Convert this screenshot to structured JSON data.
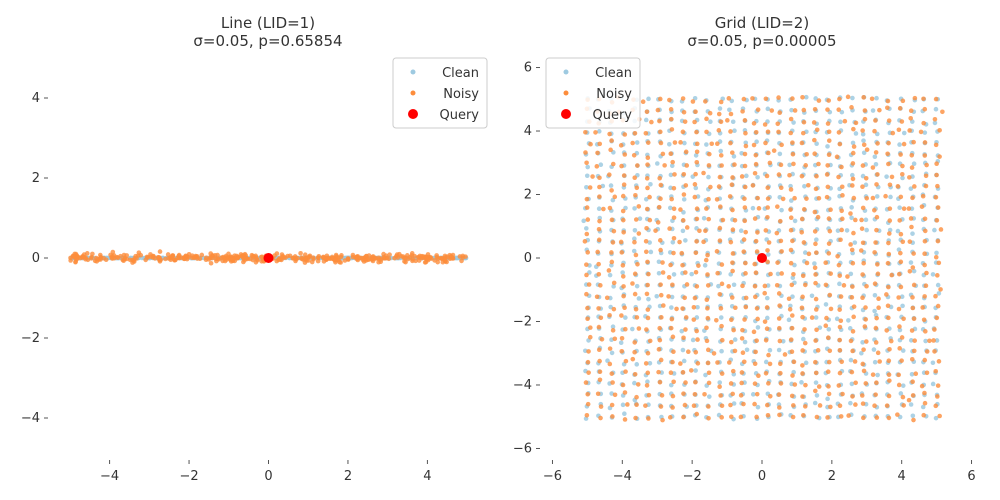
{
  "chart_data": [
    {
      "type": "scatter",
      "title_line1": "Line (LID=1)",
      "title_line2": "σ=0.05, p=0.65854",
      "xlim": [
        -5.5,
        5.5
      ],
      "ylim": [
        -5.0,
        5.0
      ],
      "xticks": [
        "−4",
        "−2",
        "0",
        "2",
        "4"
      ],
      "xtick_values": [
        -4,
        -2,
        0,
        2,
        4
      ],
      "yticks": [
        "−4",
        "−2",
        "0",
        "2",
        "4"
      ],
      "ytick_values": [
        -4,
        -2,
        0,
        2,
        4
      ],
      "legend_position": "upper-right",
      "series": [
        {
          "name": "Clean",
          "color": "#9ecae1",
          "pattern": "line",
          "x_range": [
            -5,
            5
          ],
          "y": 0,
          "count": 400
        },
        {
          "name": "Noisy",
          "color": "#fd8d3c",
          "pattern": "line-noisy",
          "x_range": [
            -5,
            5
          ],
          "y": 0,
          "noise": 0.05,
          "count": 400
        },
        {
          "name": "Query",
          "color": "#ff0000",
          "pattern": "point",
          "x": 0,
          "y": 0
        }
      ]
    },
    {
      "type": "scatter",
      "title_line1": "Grid (LID=2)",
      "title_line2": "σ=0.05, p=0.00005",
      "xlim": [
        -6.3,
        6.3
      ],
      "ylim": [
        -6.3,
        6.3
      ],
      "xticks": [
        "−6",
        "−4",
        "−2",
        "0",
        "2",
        "4",
        "6"
      ],
      "xtick_values": [
        -6,
        -4,
        -2,
        0,
        2,
        4,
        6
      ],
      "yticks": [
        "−6",
        "−4",
        "−2",
        "0",
        "2",
        "4",
        "6"
      ],
      "ytick_values": [
        -6,
        -4,
        -2,
        0,
        2,
        4,
        6
      ],
      "legend_position": "upper-left",
      "series": [
        {
          "name": "Clean",
          "color": "#9ecae1",
          "pattern": "grid",
          "range": [
            -5,
            5
          ],
          "n": 30
        },
        {
          "name": "Noisy",
          "color": "#fd8d3c",
          "pattern": "grid-noisy",
          "range": [
            -5,
            5
          ],
          "n": 30,
          "noise": 0.05
        },
        {
          "name": "Query",
          "color": "#ff0000",
          "pattern": "point",
          "x": 0,
          "y": 0
        }
      ]
    }
  ]
}
